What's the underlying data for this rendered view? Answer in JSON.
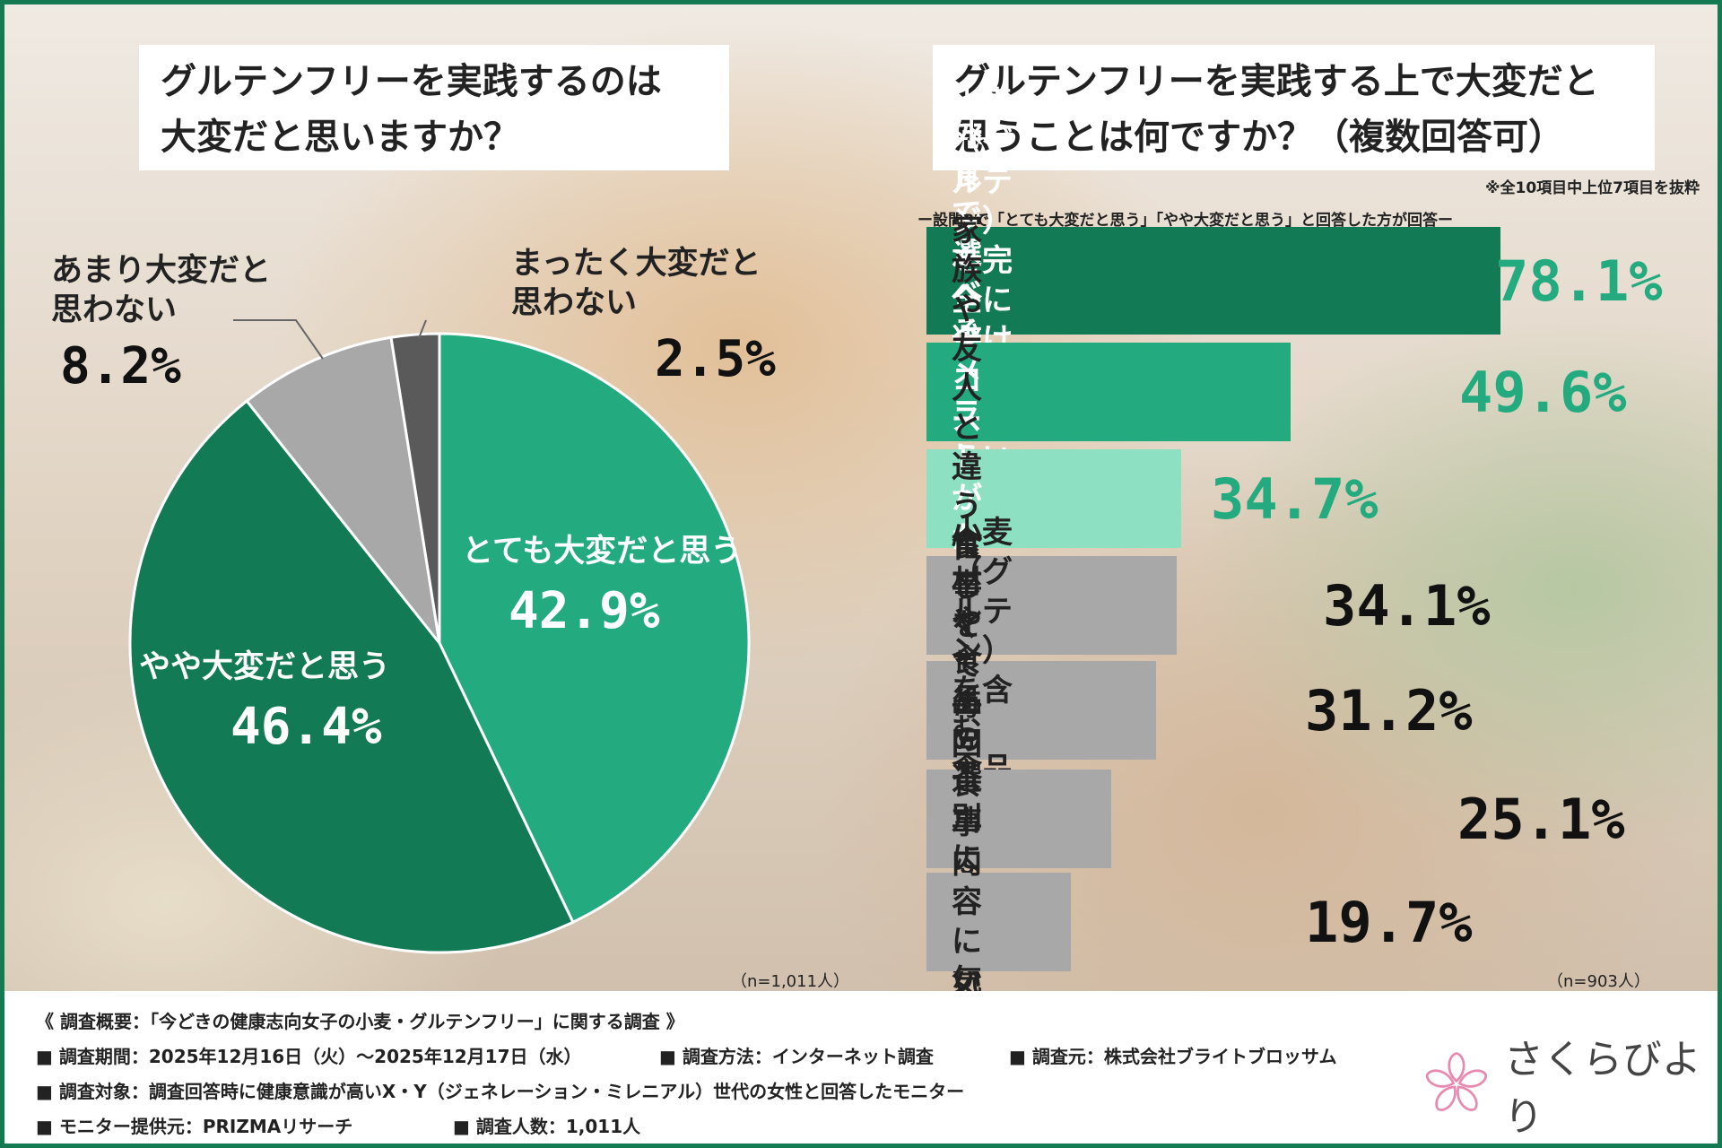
{
  "title_left": [
    "グルテンフリーを実践するのは",
    "大変だと思いますか？"
  ],
  "title_right": [
    "グルテンフリーを実践する上で大変だと",
    "思うことは何ですか？（複数回答可）"
  ],
  "footnote_right": "※全10項目中上位7項目を抜粋",
  "subtitle_right": "ー設問8で「とても大変だと思う」「やや大変だと思う」と回答した方が回答ー",
  "n_left": "（n=1,011人）",
  "n_right": "（n=903人）",
  "colors": {
    "dark_green": "#127a55",
    "mid_green": "#23ab7f",
    "light_green": "#8ee0c3",
    "gray": "#a8a8a8",
    "dark_gray": "#5a5a5a",
    "frame": "#137a52"
  },
  "chart_data": [
    {
      "type": "pie",
      "title": "グルテンフリーを実践するのは大変だと思いますか？",
      "slices": [
        {
          "label": "とても大変だと思う",
          "value": 42.9,
          "value_label": "42.9%",
          "color": "#23ab7f"
        },
        {
          "label": "やや大変だと思う",
          "value": 46.4,
          "value_label": "46.4%",
          "color": "#127a55"
        },
        {
          "label": "あまり大変だと\n思わない",
          "value": 8.2,
          "value_label": "8.2%",
          "color": "#a8a8a8"
        },
        {
          "label": "まったく大変だと\n思わない",
          "value": 2.5,
          "value_label": "2.5%",
          "color": "#5a5a5a"
        }
      ],
      "n": "（n=1,011人）"
    },
    {
      "type": "bar",
      "orientation": "horizontal",
      "title": "グルテンフリーを実践する上で大変だと思うことは何ですか？（複数回答可）",
      "categories": [
        "小麦（グルテン）を完全に\n避けるのは難しい",
        "外食で選べるメニューが少ない",
        "コストがかかる",
        "家族や友人と違う食事を\nしなければならない",
        "小麦（グルテン）を含む\n食品が恋しくなる",
        "食材や食品の選別に手間がかかる",
        "忙しくて毎回食事内容に\n気を遣う余裕がない"
      ],
      "values": [
        78.1,
        49.6,
        34.7,
        34.1,
        31.2,
        25.1,
        19.7
      ],
      "value_labels": [
        "78.1%",
        "49.6%",
        "34.7%",
        "34.1%",
        "31.2%",
        "25.1%",
        "19.7%"
      ],
      "n": "（n=903人）"
    }
  ],
  "info": {
    "heading": "《 調査概要：「今どきの健康志向女子の小麦・グルテンフリー」に関する調査 》",
    "period": "■ 調査期間：2025年12月16日（火）～2025年12月17日（水）",
    "method": "■ 調査方法：インターネット調査",
    "source": "■ 調査元：株式会社ブライトブロッサム",
    "target": "■ 調査対象：調査回答時に健康意識が高いX・Y（ジェネレーション・ミレニアル）世代の女性と回答したモニター",
    "provider": "■ モニター提供元：PRIZMAリサーチ",
    "count": "■ 調査人数：1,011人"
  },
  "logo": {
    "text": "さくらびより",
    "icon": "sakura-flower-icon",
    "color": "#e889b0"
  }
}
